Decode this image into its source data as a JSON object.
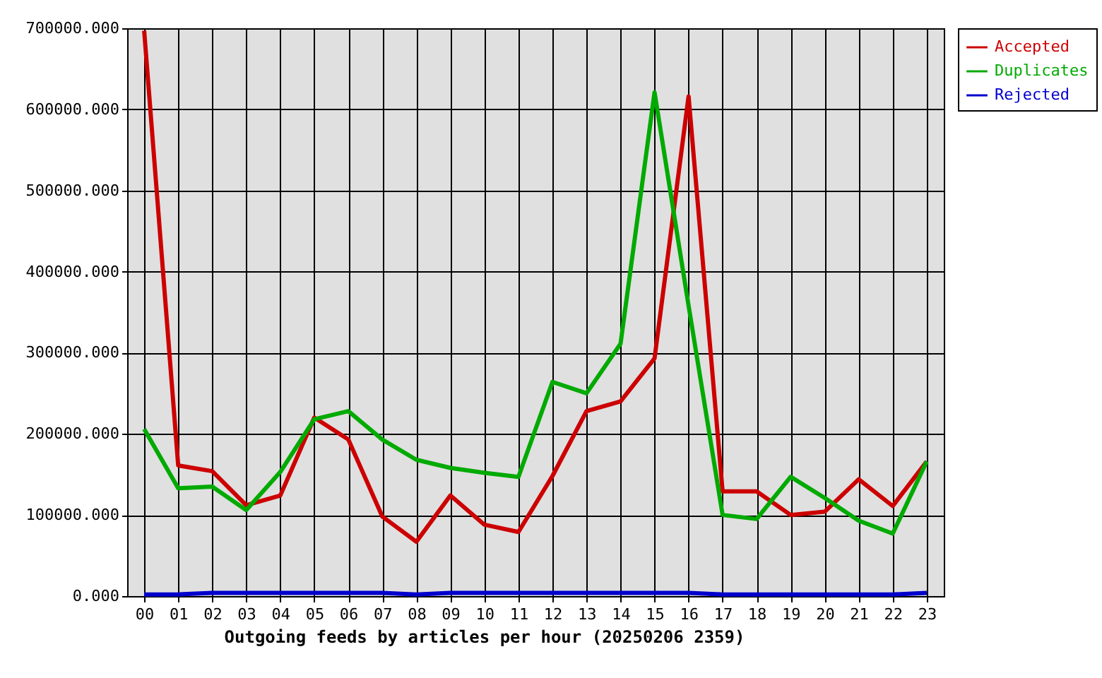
{
  "chart_data": {
    "type": "line",
    "title": "Outgoing feeds by articles per hour (20250206 2359)",
    "categories": [
      "00",
      "01",
      "02",
      "03",
      "04",
      "05",
      "06",
      "07",
      "08",
      "09",
      "10",
      "11",
      "12",
      "13",
      "14",
      "15",
      "16",
      "17",
      "18",
      "19",
      "20",
      "21",
      "22",
      "23"
    ],
    "series": [
      {
        "name": "Accepted",
        "color": "#cc0000",
        "values": [
          697000,
          161000,
          154000,
          112000,
          124000,
          220000,
          193000,
          98000,
          67000,
          124000,
          88000,
          79000,
          148000,
          228000,
          240000,
          293000,
          616000,
          129000,
          129000,
          100000,
          104000,
          144000,
          111000,
          166000
        ]
      },
      {
        "name": "Duplicates",
        "color": "#00aa00",
        "values": [
          206000,
          133000,
          135000,
          106000,
          153000,
          218000,
          228000,
          193000,
          168000,
          158000,
          152000,
          147000,
          264000,
          250000,
          311000,
          621000,
          358000,
          100000,
          95000,
          147000,
          121000,
          93000,
          77000,
          166000
        ]
      },
      {
        "name": "Rejected",
        "color": "#0000cc",
        "values": [
          2000,
          2000,
          4000,
          4000,
          4000,
          4000,
          4000,
          4000,
          2000,
          4000,
          4000,
          4000,
          4000,
          4000,
          4000,
          4000,
          4000,
          2000,
          2000,
          2000,
          2000,
          2000,
          2000,
          4000
        ]
      }
    ],
    "ylim": [
      0,
      700000
    ],
    "yticks": [
      {
        "value": 0,
        "label": "0.000"
      },
      {
        "value": 100000,
        "label": "100000.000"
      },
      {
        "value": 200000,
        "label": "200000.000"
      },
      {
        "value": 300000,
        "label": "300000.000"
      },
      {
        "value": 400000,
        "label": "400000.000"
      },
      {
        "value": 500000,
        "label": "500000.000"
      },
      {
        "value": 600000,
        "label": "600000.000"
      },
      {
        "value": 700000,
        "label": "700000.000"
      }
    ],
    "grid": true,
    "legend": "top right",
    "line_style": "solid"
  }
}
